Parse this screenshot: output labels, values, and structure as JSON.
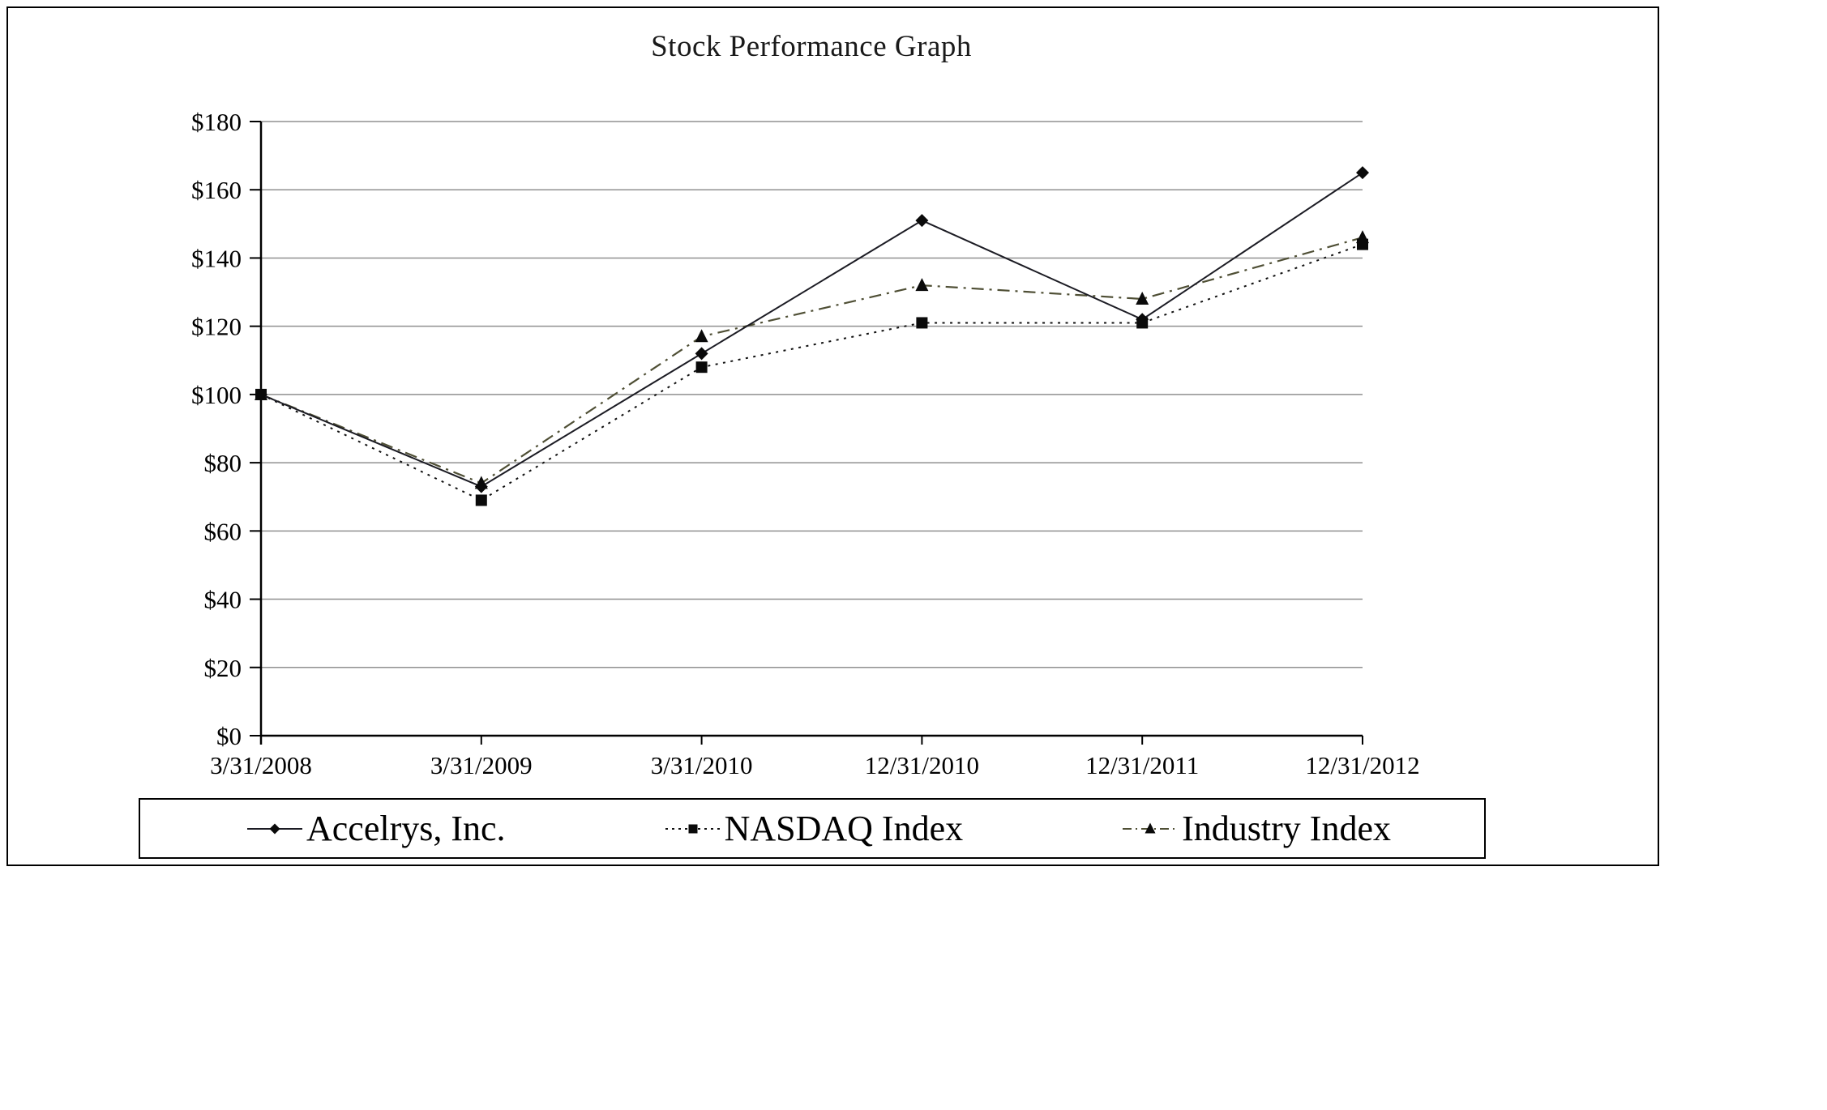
{
  "title": "Stock Performance Graph",
  "chart_data": {
    "type": "line",
    "title": "Stock Performance Graph",
    "categories": [
      "3/31/2008",
      "3/31/2009",
      "3/31/2010",
      "12/31/2010",
      "12/31/2011",
      "12/31/2012"
    ],
    "series": [
      {
        "name": "Accelrys, Inc.",
        "marker": "diamond",
        "line": "solid",
        "color": "#1c1c24",
        "values": [
          100,
          73,
          112,
          151,
          122,
          165
        ]
      },
      {
        "name": "NASDAQ Index",
        "marker": "square",
        "line": "dotted",
        "color": "#111111",
        "values": [
          100,
          69,
          108,
          121,
          121,
          144
        ]
      },
      {
        "name": "Industry Index",
        "marker": "triangle",
        "line": "dash-dot",
        "color": "#4f4f35",
        "values": [
          100,
          74,
          117,
          132,
          128,
          146
        ]
      }
    ],
    "ylim": [
      0,
      180
    ],
    "ytick_step": 20,
    "ytick_labels": [
      "$0",
      "$20",
      "$40",
      "$60",
      "$80",
      "$100",
      "$120",
      "$140",
      "$160",
      "$180"
    ],
    "tick_prefix": "$",
    "xlabel": "",
    "ylabel": "",
    "grid": "horizontal",
    "legend_position": "bottom",
    "gridline_color": "#909090",
    "axis_color": "#000000",
    "marker_color": "#0a0a0a"
  }
}
